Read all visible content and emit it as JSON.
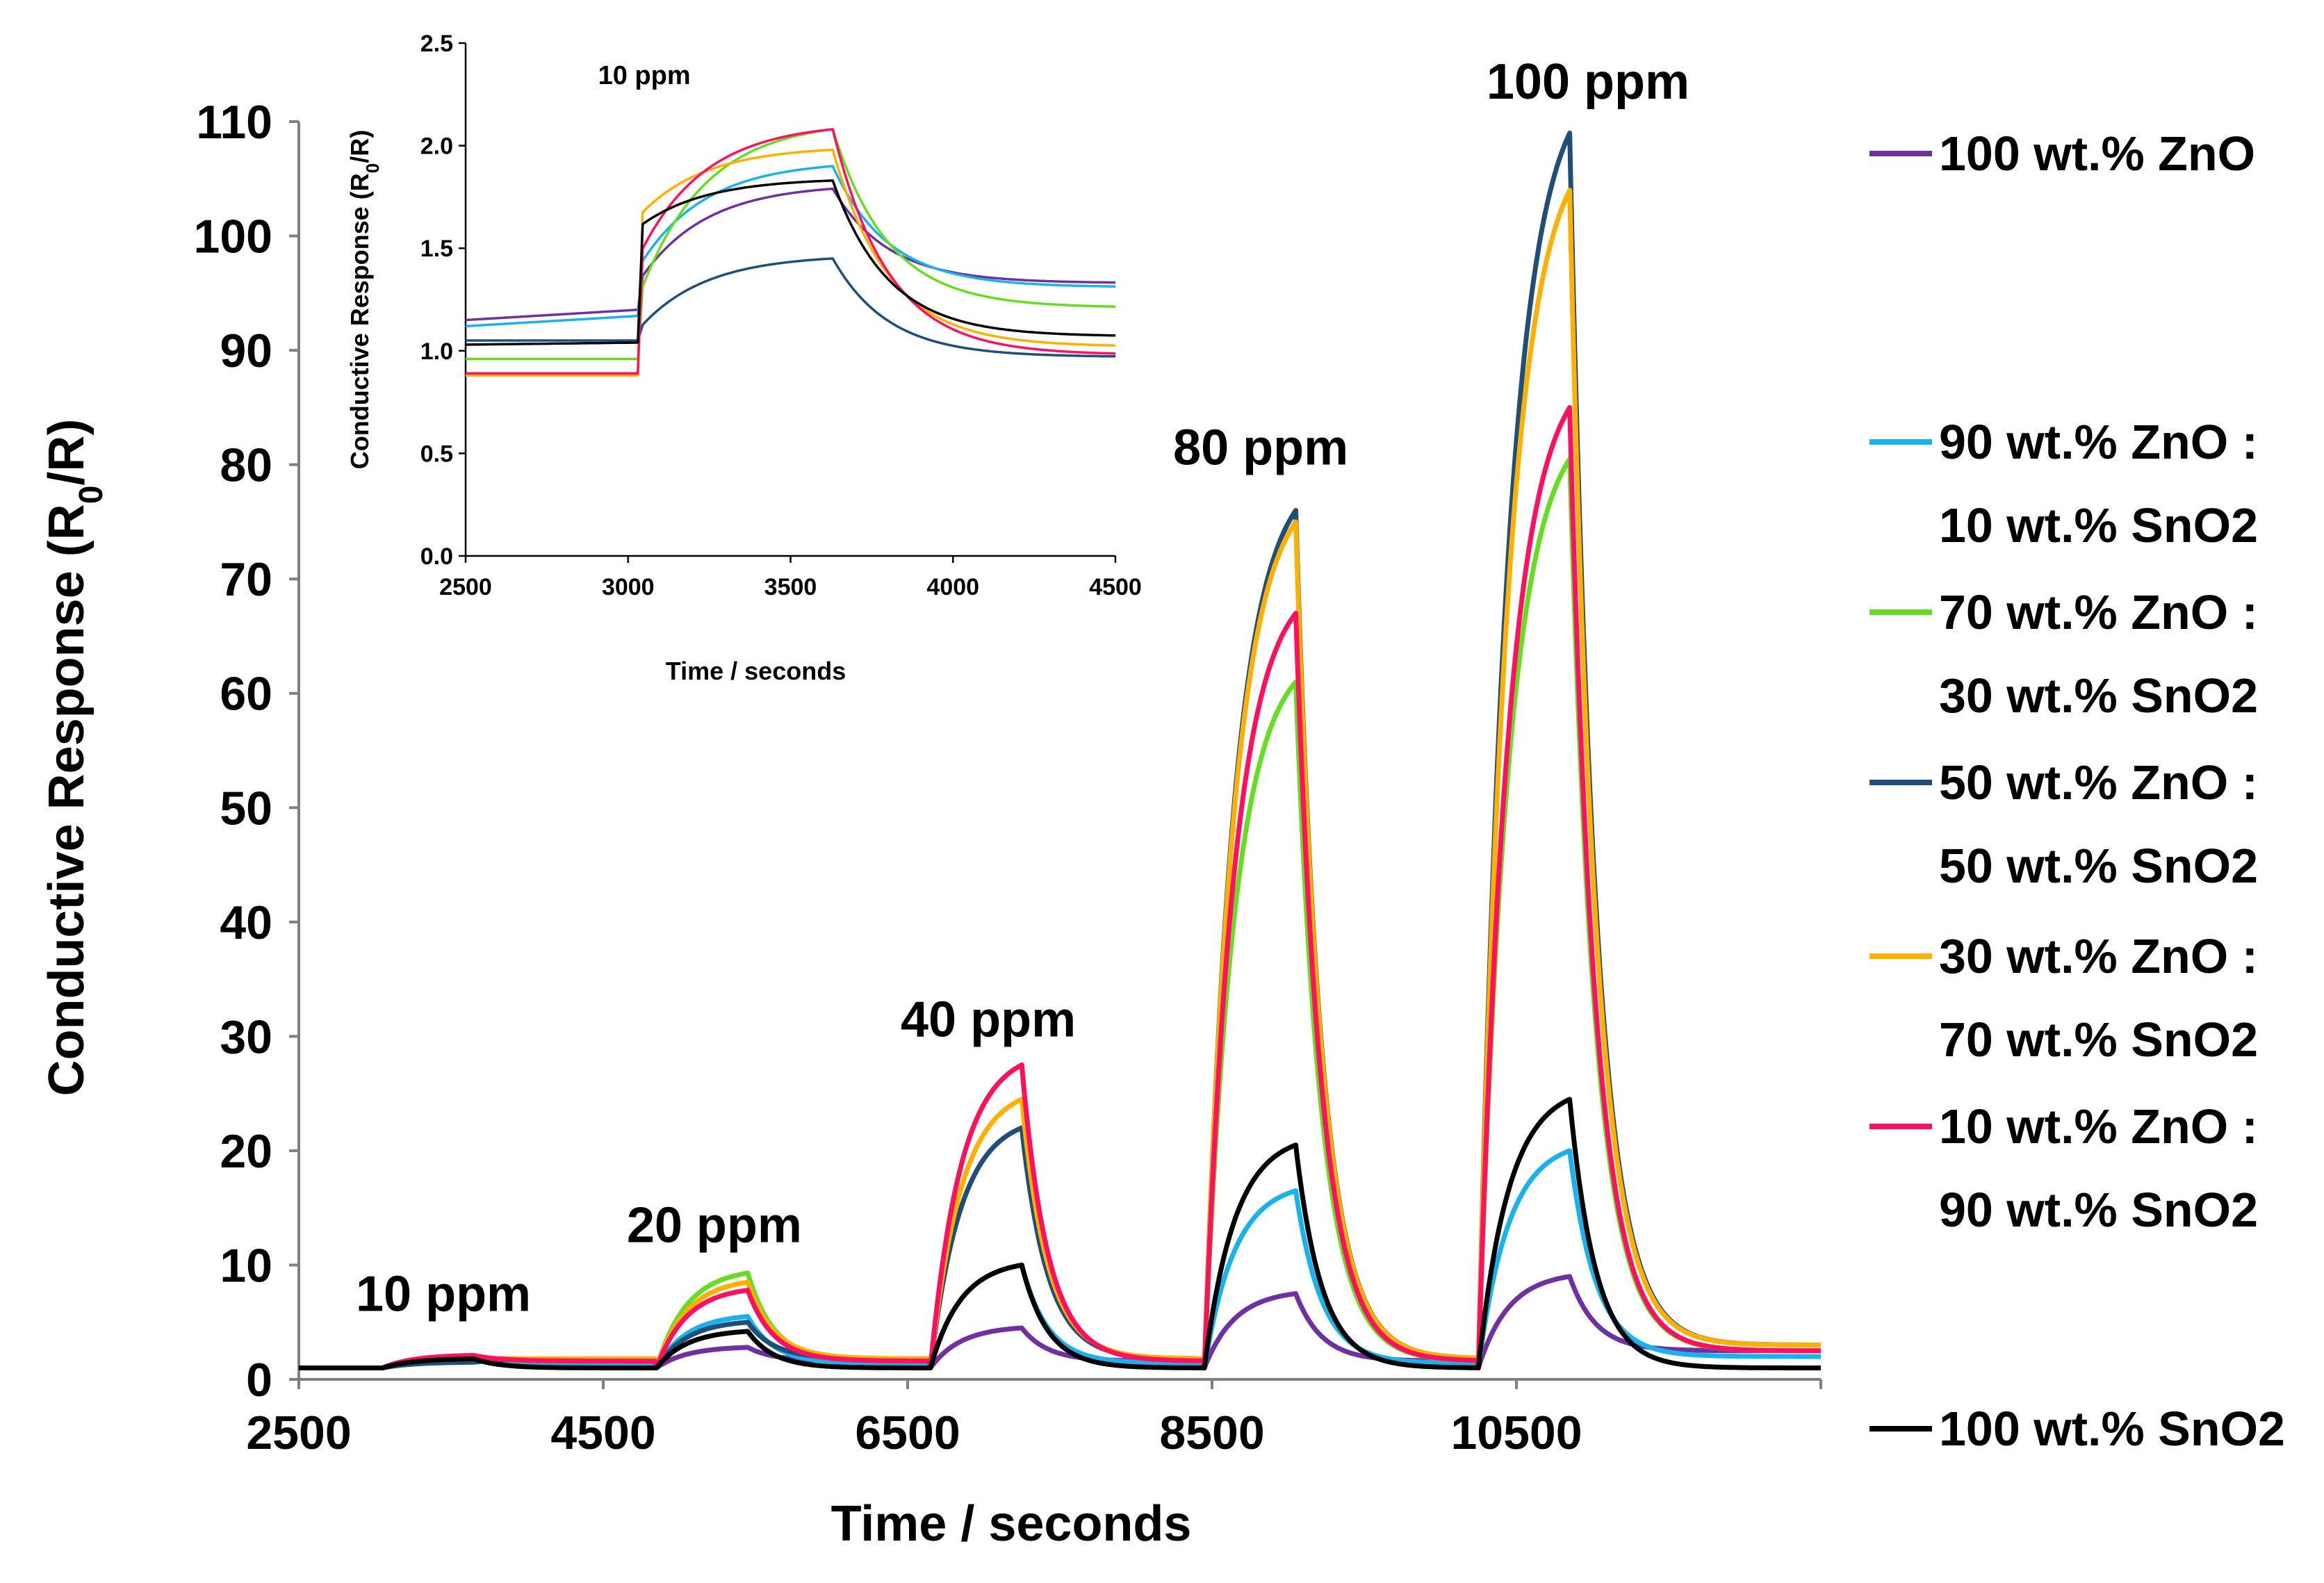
{
  "chart_data": [
    {
      "type": "line",
      "id": "main",
      "xlabel": "Time / seconds",
      "ylabel": "Conductive Response (R0/R)",
      "ylabel_parts": {
        "pre": "Conductive Response (R",
        "sub": "0",
        "post": "/R)"
      },
      "xlim": [
        2500,
        12500
      ],
      "ylim": [
        0,
        110
      ],
      "xticks": [
        2500,
        4500,
        6500,
        8500,
        10500
      ],
      "xtick_labels": [
        "2500",
        "4500",
        "6500",
        "8500",
        "10500"
      ],
      "yticks": [
        0,
        10,
        20,
        30,
        40,
        50,
        60,
        70,
        80,
        90,
        100,
        110
      ],
      "ytick_labels": [
        "0",
        "10",
        "20",
        "30",
        "40",
        "50",
        "60",
        "70",
        "80",
        "90",
        "100",
        "110"
      ],
      "grid": false,
      "pulses": [
        {
          "label": "10 ppm",
          "on": 3050,
          "off": 3650,
          "label_x": 3450,
          "label_y": 6
        },
        {
          "label": "20 ppm",
          "on": 4850,
          "off": 5450,
          "label_x": 5230,
          "label_y": 12
        },
        {
          "label": "40 ppm",
          "on": 6650,
          "off": 7250,
          "label_x": 7030,
          "label_y": 30
        },
        {
          "label": "80 ppm",
          "on": 8450,
          "off": 9050,
          "label_x": 8820,
          "label_y": 80
        },
        {
          "label": "100 ppm",
          "on": 10250,
          "off": 10850,
          "label_x": 10970,
          "label_y": 112
        }
      ],
      "baseline": 1,
      "series": [
        {
          "name": "100 wt.% ZnO",
          "color": "#7030a0",
          "peaks": [
            1.8,
            2.8,
            4.5,
            7.5,
            9.0
          ],
          "tail": 2.5
        },
        {
          "name": "90 wt.% ZnO : 10 wt.% SnO2",
          "color": "#19b2ec",
          "peaks": [
            1.9,
            5.5,
            10.0,
            16.5,
            20.0
          ],
          "tail": 2.0
        },
        {
          "name": "70 wt.% ZnO : 30 wt.% SnO2",
          "color": "#66dd22",
          "peaks": [
            2.0,
            9.3,
            27.5,
            61.0,
            80.5
          ],
          "tail": 2.5
        },
        {
          "name": "50 wt.% ZnO : 50 wt.% SnO2",
          "color": "#1f4e79",
          "peaks": [
            1.5,
            5.0,
            22.0,
            76.0,
            109.0
          ],
          "tail": 3.0
        },
        {
          "name": "30 wt.% ZnO : 70 wt.% SnO2",
          "color": "#ffb000",
          "peaks": [
            1.9,
            8.5,
            24.5,
            75.0,
            104.0
          ],
          "tail": 3.0
        },
        {
          "name": "10 wt.% ZnO : 90 wt.% SnO2",
          "color": "#ff1060",
          "peaks": [
            2.1,
            7.8,
            27.5,
            67.0,
            85.0
          ],
          "tail": 2.5
        },
        {
          "name": "100 wt.% SnO2",
          "color": "#000000",
          "peaks": [
            1.8,
            4.2,
            10.0,
            20.5,
            24.5
          ],
          "tail": 1.0
        }
      ]
    },
    {
      "type": "line",
      "id": "inset",
      "title": "10 ppm",
      "xlabel": "Time / seconds",
      "ylabel": "Conductive Response (R0/R)",
      "ylabel_parts": {
        "pre": "Conductive Response (R",
        "sub": "0",
        "post": "/R)"
      },
      "xlim": [
        2500,
        4500
      ],
      "ylim": [
        0,
        2.5
      ],
      "xticks": [
        2500,
        3000,
        3500,
        4000,
        4500
      ],
      "xtick_labels": [
        "2500",
        "3000",
        "3500",
        "4000",
        "4500"
      ],
      "yticks": [
        0,
        0.5,
        1.0,
        1.5,
        2.0,
        2.5
      ],
      "ytick_labels": [
        "0.0",
        "0.5",
        "1.0",
        "1.5",
        "2.0",
        "2.5"
      ],
      "pulse": {
        "on": 3030,
        "off": 3630
      },
      "series": [
        {
          "name": "100 wt.% ZnO",
          "color": "#7030a0",
          "baseline_start": 1.15,
          "baseline_end": 1.2,
          "peak": 1.79,
          "jump": 1.33,
          "final": 1.33
        },
        {
          "name": "90 wt.% ZnO : 10 wt.% SnO2",
          "color": "#19b2ec",
          "baseline_start": 1.12,
          "baseline_end": 1.17,
          "peak": 1.9,
          "jump": 1.4,
          "final": 1.31
        },
        {
          "name": "70 wt.% ZnO : 30 wt.% SnO2",
          "color": "#66dd22",
          "baseline_start": 0.96,
          "baseline_end": 0.96,
          "peak": 2.08,
          "jump": 1.25,
          "final": 1.21
        },
        {
          "name": "50 wt.% ZnO : 50 wt.% SnO2",
          "color": "#1f4e79",
          "baseline_start": 1.05,
          "baseline_end": 1.05,
          "peak": 1.45,
          "jump": 1.1,
          "final": 0.97
        },
        {
          "name": "30 wt.% ZnO : 70 wt.% SnO2",
          "color": "#ffb000",
          "baseline_start": 0.88,
          "baseline_end": 0.88,
          "peak": 1.98,
          "jump": 1.65,
          "final": 1.02
        },
        {
          "name": "10 wt.% ZnO : 90 wt.% SnO2",
          "color": "#ff1060",
          "baseline_start": 0.89,
          "baseline_end": 0.89,
          "peak": 2.08,
          "jump": 1.45,
          "final": 0.98
        },
        {
          "name": "100 wt.% SnO2",
          "color": "#000000",
          "baseline_start": 1.03,
          "baseline_end": 1.04,
          "peak": 1.83,
          "jump": 1.6,
          "final": 1.07
        }
      ]
    }
  ],
  "legend": [
    {
      "line1": "100 wt.% ZnO",
      "line2": "",
      "color": "#7030a0"
    },
    {
      "line1": "90 wt.% ZnO :",
      "line2": "10 wt.% SnO2",
      "color": "#19b2ec"
    },
    {
      "line1": "70 wt.% ZnO :",
      "line2": "30 wt.% SnO2",
      "color": "#66dd22"
    },
    {
      "line1": "50 wt.% ZnO :",
      "line2": "50 wt.% SnO2",
      "color": "#1f4e79"
    },
    {
      "line1": "30 wt.% ZnO :",
      "line2": "70 wt.% SnO2",
      "color": "#ffb000"
    },
    {
      "line1": "10 wt.% ZnO :",
      "line2": "90 wt.% SnO2",
      "color": "#ff1060"
    },
    {
      "line1": "100 wt.% SnO2",
      "line2": "",
      "color": "#000000"
    }
  ]
}
